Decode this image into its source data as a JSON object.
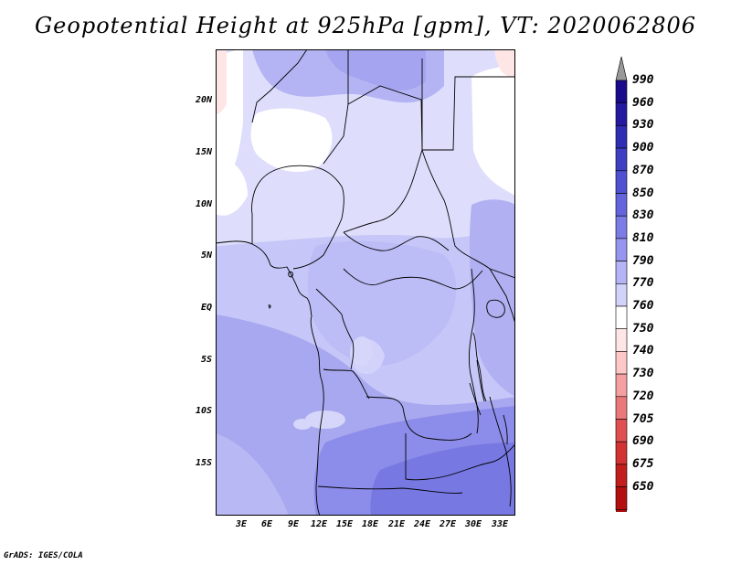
{
  "title": "Geopotential Height at 925hPa [gpm], VT: 2020062806",
  "credit": "GrADS: IGES/COLA",
  "map": {
    "lat_labels": [
      "20N",
      "15N",
      "10N",
      "5N",
      "EQ",
      "5S",
      "10S",
      "15S"
    ],
    "lon_labels": [
      "3E",
      "6E",
      "9E",
      "12E",
      "15E",
      "18E",
      "21E",
      "24E",
      "27E",
      "30E",
      "33E"
    ]
  },
  "colorbar": {
    "levels": [
      "990",
      "960",
      "930",
      "900",
      "870",
      "850",
      "830",
      "810",
      "790",
      "770",
      "760",
      "750",
      "740",
      "730",
      "720",
      "705",
      "690",
      "675",
      "650"
    ],
    "colors": [
      "#1a0a8c",
      "#231aa0",
      "#2e2db4",
      "#3f3fc4",
      "#5050d2",
      "#6464dc",
      "#7c7ce6",
      "#9696f0",
      "#b4b4f6",
      "#d2d2fa",
      "#ffffff",
      "#ffe6e6",
      "#ffc8c8",
      "#f5a0a0",
      "#eb7878",
      "#e15050",
      "#d23232",
      "#c31e1e",
      "#b40f0f"
    ]
  },
  "colors": {
    "field_lowest": "#ffffff",
    "field_low": "#dcdcfc",
    "field_mid": "#bcbcf6",
    "field_high": "#a0a0f0",
    "field_highest": "#8080e8",
    "field_negative": "#ffe6e6"
  }
}
